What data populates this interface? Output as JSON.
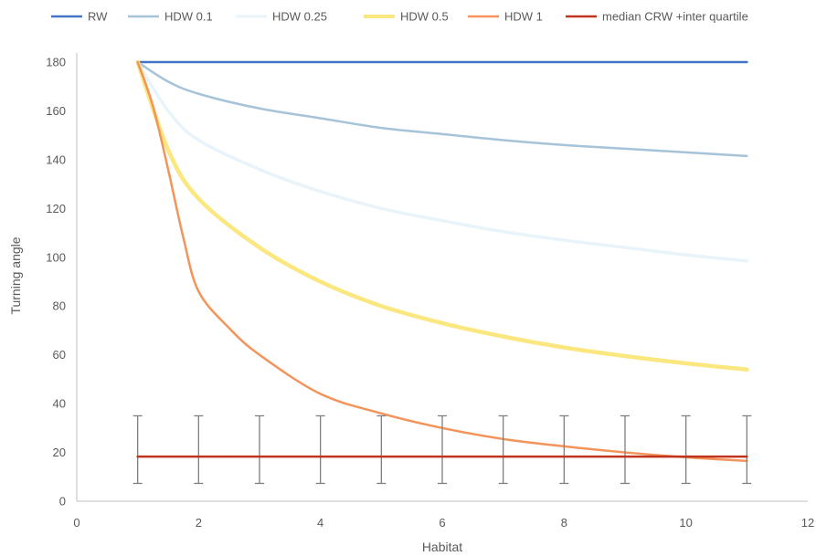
{
  "chart_data": {
    "type": "line",
    "xlabel": "Habitat",
    "ylabel": "Turning angle",
    "xlim": [
      0,
      12
    ],
    "ylim": [
      0,
      180
    ],
    "x_ticks": [
      0,
      2,
      4,
      6,
      8,
      10,
      12
    ],
    "y_ticks": [
      0,
      20,
      40,
      60,
      80,
      100,
      120,
      140,
      160,
      180
    ],
    "grid": false,
    "legend_position": "top",
    "series": [
      {
        "name": "RW",
        "color": "#4472c4",
        "width": 2.5,
        "x": [
          1,
          2,
          3,
          4,
          5,
          6,
          7,
          8,
          9,
          10,
          11
        ],
        "y": [
          180,
          180,
          180,
          180,
          180,
          180,
          180,
          180,
          180,
          180,
          180
        ]
      },
      {
        "name": "HDW 0.1",
        "color": "#a5c3d9",
        "width": 2.5,
        "x": [
          1,
          1.5,
          2,
          3,
          4,
          5,
          6,
          7,
          8,
          9,
          10,
          11
        ],
        "y": [
          180,
          172,
          167,
          161,
          157,
          153,
          150.5,
          148,
          146,
          144.5,
          143,
          141.5
        ]
      },
      {
        "name": "HDW 0.25",
        "color": "#e9f3fa",
        "width": 3.5,
        "x": [
          1,
          1.5,
          2,
          3,
          4,
          5,
          6,
          7,
          8,
          9,
          10,
          11
        ],
        "y": [
          180,
          160,
          148,
          136,
          127,
          120,
          115,
          110.5,
          107,
          104,
          101,
          98.5
        ]
      },
      {
        "name": "HDW 0.5",
        "color": "#fbe77f",
        "width": 4.5,
        "x": [
          1,
          1.5,
          2,
          3,
          4,
          5,
          6,
          7,
          8,
          9,
          10,
          11
        ],
        "y": [
          180,
          144,
          124,
          104,
          90,
          80,
          73,
          67.5,
          63,
          59.5,
          56.5,
          54
        ]
      },
      {
        "name": "HDW 1",
        "color": "#f4935a",
        "width": 2.5,
        "x": [
          1,
          1.25,
          1.5,
          1.75,
          2,
          2.5,
          3,
          4,
          5,
          6,
          7,
          8,
          9,
          10,
          11
        ],
        "y": [
          180,
          162,
          136,
          108,
          86,
          71,
          60,
          44,
          36,
          30,
          25.5,
          22.5,
          20,
          18,
          16.5
        ]
      },
      {
        "name": "median CRW +inter quartile",
        "color": "#c0341d",
        "width": 2.5,
        "x": [
          1,
          2,
          3,
          4,
          5,
          6,
          7,
          8,
          9,
          10,
          11
        ],
        "y": [
          18.3,
          18.3,
          18.3,
          18.3,
          18.3,
          18.3,
          18.3,
          18.3,
          18.3,
          18.3,
          18.3
        ],
        "error_low": 7.3,
        "error_high": 35
      }
    ],
    "error_bar_color": "#7f7f7f"
  }
}
